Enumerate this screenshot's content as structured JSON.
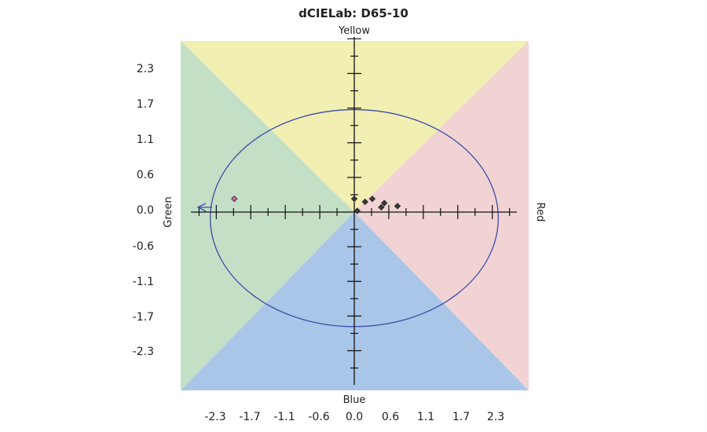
{
  "chart_data": {
    "type": "scatter",
    "title": "dCIELab: D65-10",
    "direction_labels": {
      "top": "Yellow",
      "bottom": "Blue",
      "left": "Green",
      "right": "Red"
    },
    "x_ticks": [
      "-2.3",
      "-1.7",
      "-1.1",
      "-0.6",
      "0.0",
      "0.6",
      "1.1",
      "1.7",
      "2.3"
    ],
    "y_ticks": [
      "2.3",
      "1.7",
      "1.1",
      "0.6",
      "0.0",
      "-0.6",
      "-1.1",
      "-1.7",
      "-2.3"
    ],
    "xlim": [
      -2.9,
      2.9
    ],
    "ylim": [
      -2.9,
      2.9
    ],
    "regions": [
      {
        "name": "Yellow",
        "color": "#f1efb2"
      },
      {
        "name": "Red",
        "color": "#f1d3d4"
      },
      {
        "name": "Blue",
        "color": "#a9c6e8"
      },
      {
        "name": "Green",
        "color": "#c3dfc6"
      }
    ],
    "tolerance_ellipse": {
      "x_range": [
        -2.4,
        2.4
      ],
      "y_range": [
        -1.9,
        1.7
      ],
      "color": "#3d4ba8"
    },
    "points": [
      {
        "x": 0.0,
        "y": 0.22,
        "color": "#3a3a3a"
      },
      {
        "x": 0.05,
        "y": 0.02,
        "color": "#3a3a3a"
      },
      {
        "x": 0.18,
        "y": 0.17,
        "color": "#3a3a3a"
      },
      {
        "x": 0.3,
        "y": 0.22,
        "color": "#3a3a3a"
      },
      {
        "x": 0.45,
        "y": 0.08,
        "color": "#3a3a3a"
      },
      {
        "x": 0.5,
        "y": 0.15,
        "color": "#3a3a3a"
      },
      {
        "x": 0.72,
        "y": 0.1,
        "color": "#3a3a3a"
      },
      {
        "x": -2.0,
        "y": 0.22,
        "color": "#e0609c"
      }
    ],
    "off_chart_marker": {
      "direction": "left",
      "y": 0.08,
      "color": "#3d4ba8"
    }
  }
}
